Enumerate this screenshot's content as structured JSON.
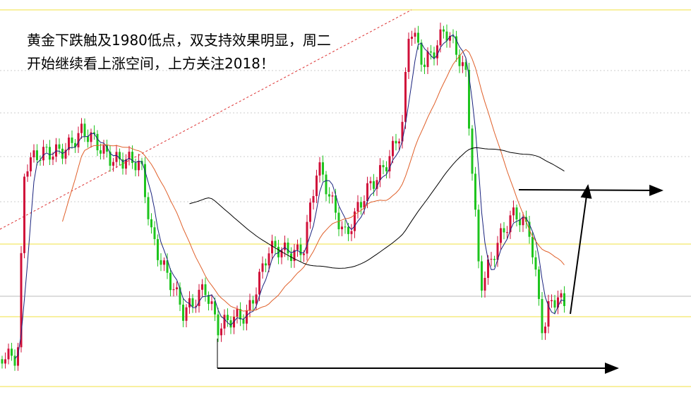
{
  "annotation": {
    "lines": [
      "黄金下跌触及1980低点，双支持效果明显，周二",
      "开始继续看上涨空间，上方关注2018！"
    ]
  }
}
